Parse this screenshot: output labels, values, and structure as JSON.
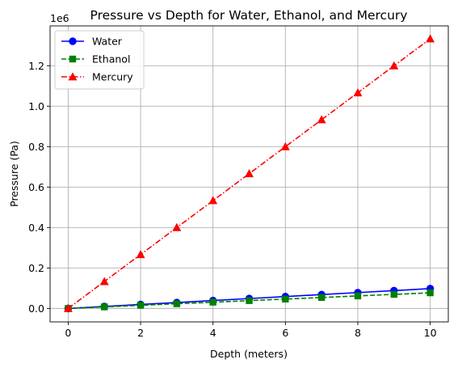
{
  "chart_data": {
    "type": "line",
    "title": "Pressure vs Depth for Water, Ethanol, and Mercury",
    "xlabel": "Depth (meters)",
    "ylabel": "Pressure (Pa)",
    "y_offset_label": "1e6",
    "xlim": [
      -0.5,
      10.5
    ],
    "ylim": [
      -0.0665,
      1.397
    ],
    "x_ticks": [
      0,
      2,
      4,
      6,
      8,
      10
    ],
    "x_tick_labels": [
      "0",
      "2",
      "4",
      "6",
      "8",
      "10"
    ],
    "y_ticks": [
      0.0,
      0.2,
      0.4,
      0.6,
      0.8,
      1.0,
      1.2
    ],
    "y_tick_labels": [
      "0.0",
      "0.2",
      "0.4",
      "0.6",
      "0.8",
      "1.0",
      "1.2"
    ],
    "grid": true,
    "legend_position": "top-left",
    "x": [
      0,
      1,
      2,
      3,
      4,
      5,
      6,
      7,
      8,
      9,
      10
    ],
    "series": [
      {
        "name": "Water",
        "color": "#0000ff",
        "line_style": "solid",
        "marker": "circle",
        "values": [
          0.0,
          0.0098,
          0.0196,
          0.0294,
          0.0392,
          0.049,
          0.0588,
          0.0686,
          0.0784,
          0.0882,
          0.098
        ]
      },
      {
        "name": "Ethanol",
        "color": "#008000",
        "line_style": "dashed",
        "marker": "square",
        "values": [
          0.0,
          0.0077,
          0.0155,
          0.0232,
          0.0309,
          0.0387,
          0.0464,
          0.0541,
          0.0619,
          0.0696,
          0.0773
        ]
      },
      {
        "name": "Mercury",
        "color": "#ff0000",
        "line_style": "dashdot",
        "marker": "triangle",
        "values": [
          0.0,
          0.1333,
          0.2666,
          0.3999,
          0.5332,
          0.6665,
          0.7998,
          0.9331,
          1.0664,
          1.1997,
          1.333
        ]
      }
    ]
  }
}
